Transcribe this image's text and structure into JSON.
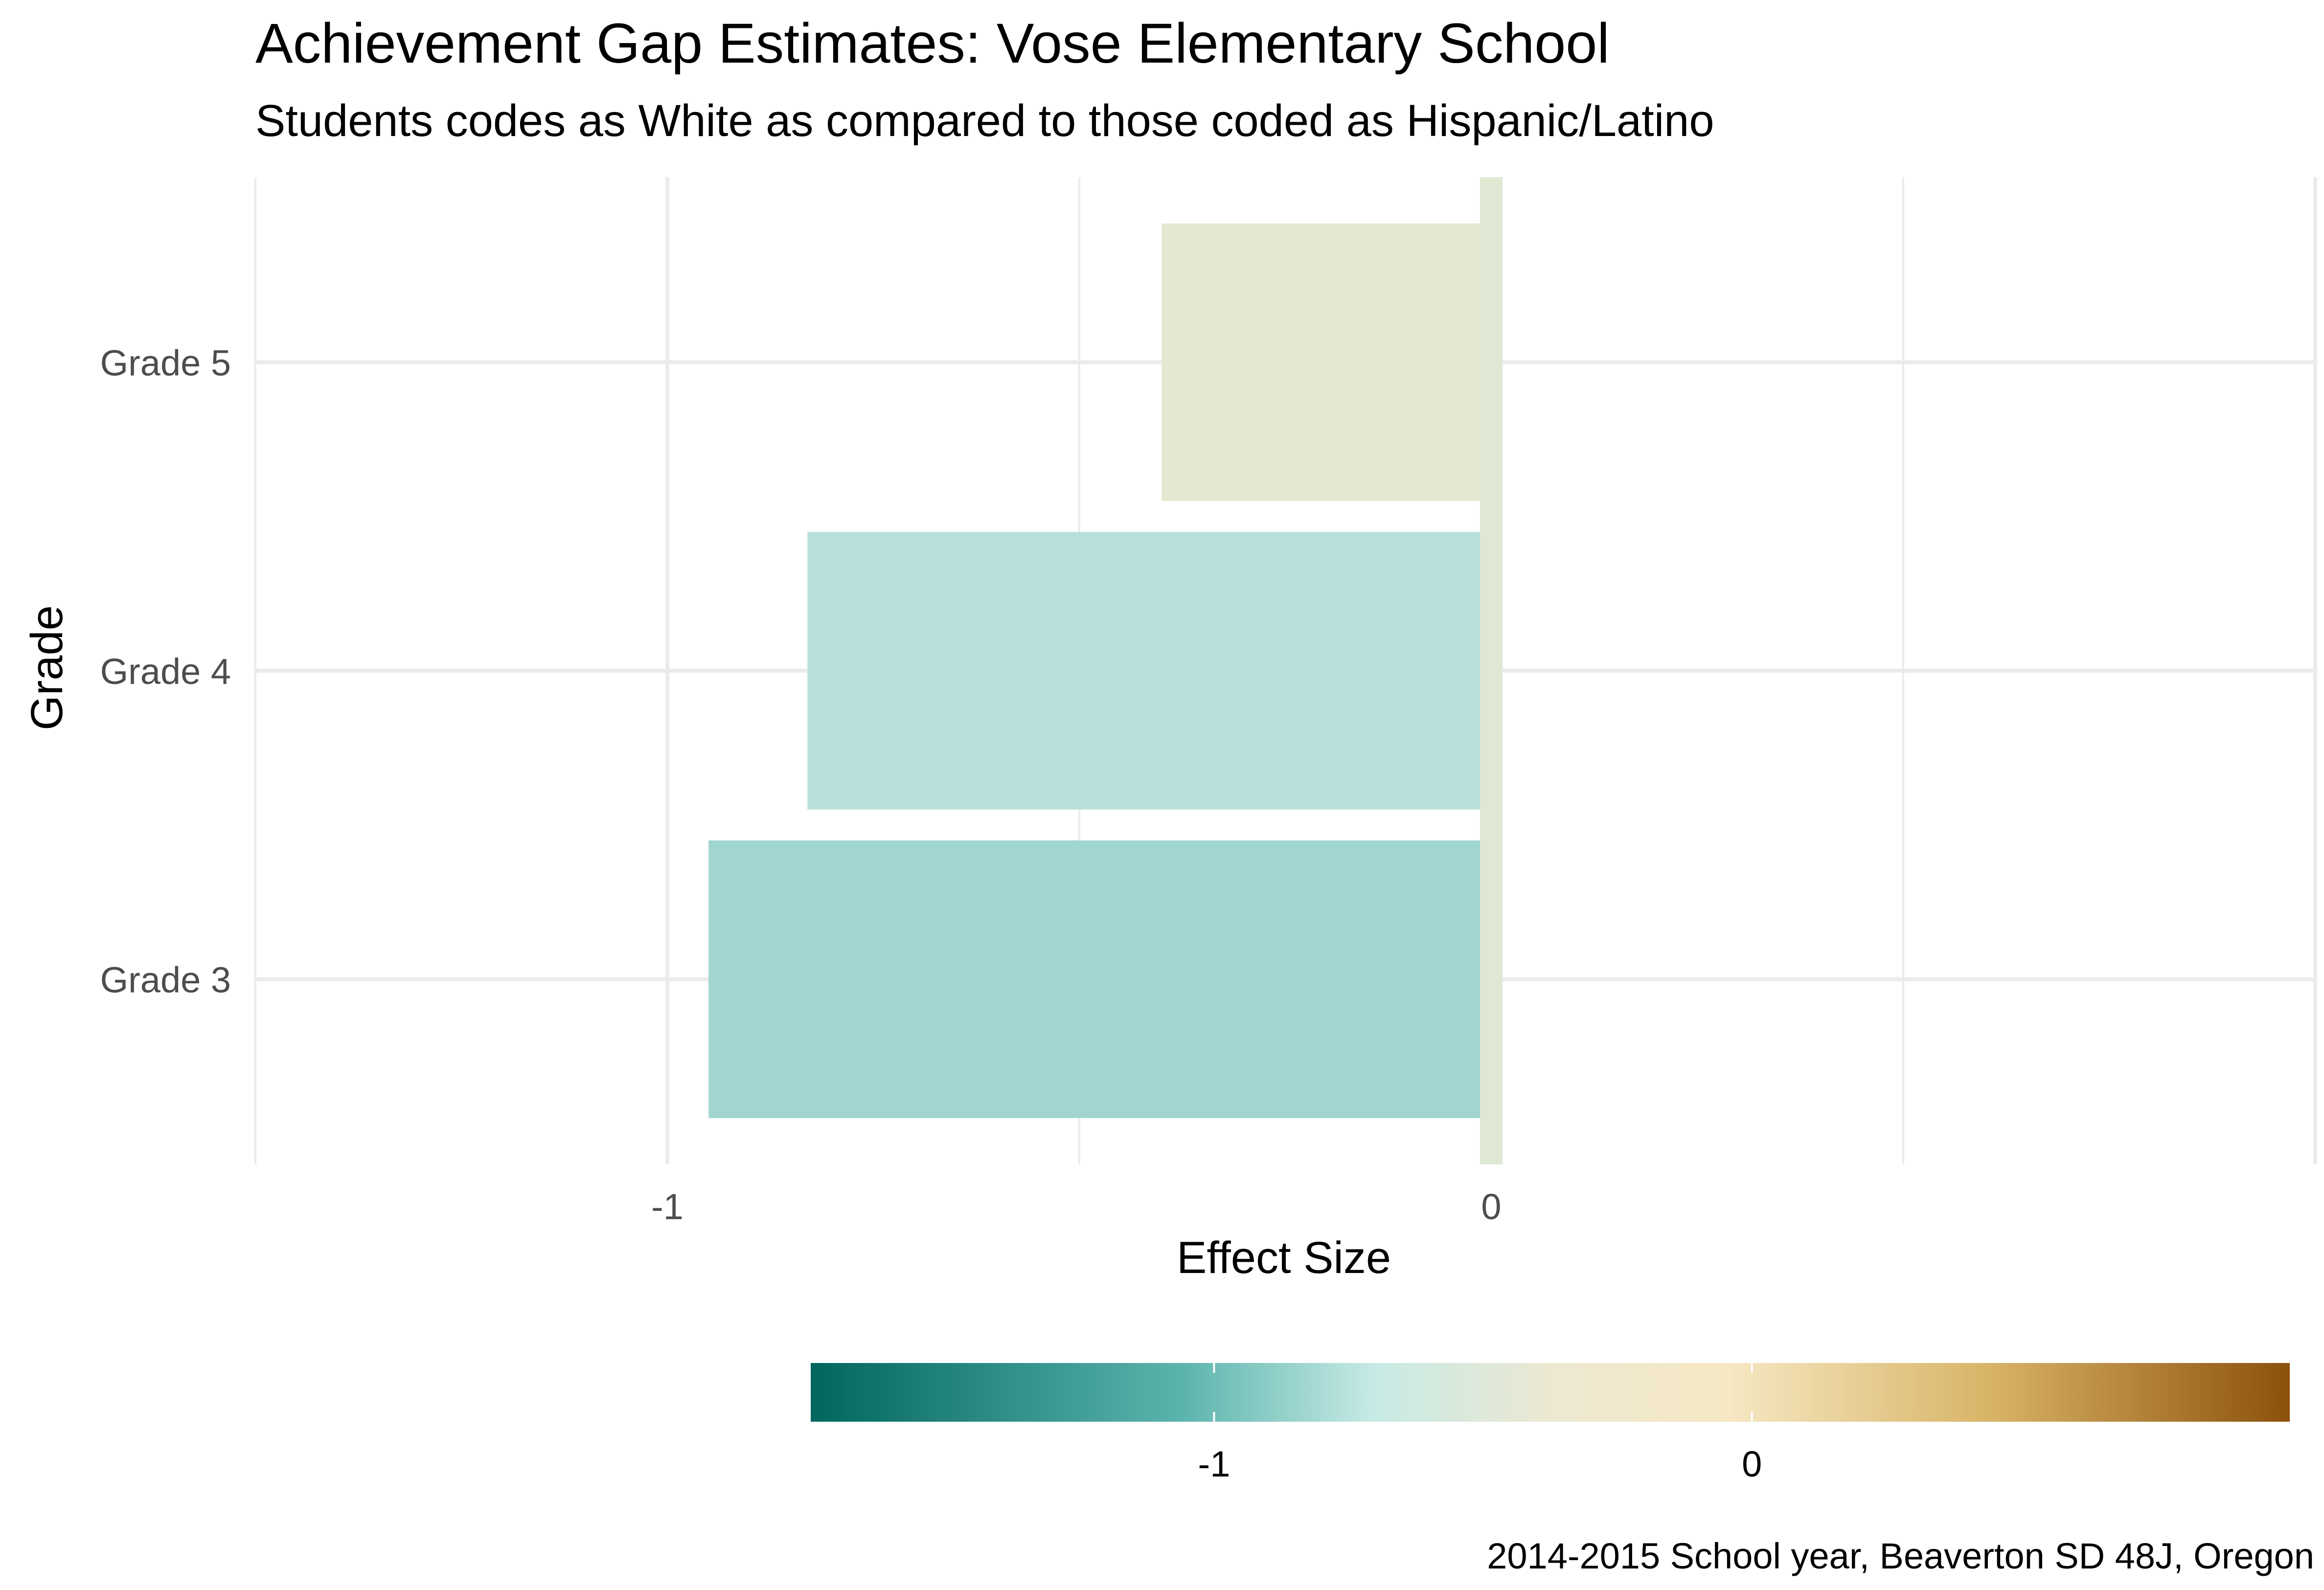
{
  "chart_data": {
    "type": "bar",
    "orientation": "horizontal",
    "title": "Achievement Gap Estimates: Vose Elementary School",
    "subtitle": "Students codes as White as compared to those coded as Hispanic/Latino",
    "caption": "2014-2015 School year, Beaverton SD 48J, Oregon",
    "xlabel": "Effect Size",
    "ylabel": "Grade",
    "categories": [
      "Grade 3",
      "Grade 4",
      "Grade 5"
    ],
    "values": [
      -0.95,
      -0.83,
      -0.4
    ],
    "xlim": [
      -1.5,
      1.0
    ],
    "x_ticks": [
      -1,
      0
    ],
    "x_tick_labels": [
      "-1",
      "0"
    ],
    "grid": true,
    "reference_line": {
      "x": 0,
      "color": "#dfe8d3"
    },
    "bar_colors": [
      "#a0d6cf",
      "#b9e1dc",
      "#e5e8d0"
    ],
    "legend": {
      "type": "colorbar",
      "placement": "bottom",
      "range": [
        -1.75,
        1.0
      ],
      "ticks": [
        -1,
        0
      ],
      "tick_labels": [
        "-1",
        "0"
      ],
      "colors": [
        "#01665e",
        "#5ab4ac",
        "#c7eae5",
        "#f5f0d8",
        "#f6e8c3",
        "#d8b365",
        "#8c510a"
      ]
    }
  }
}
